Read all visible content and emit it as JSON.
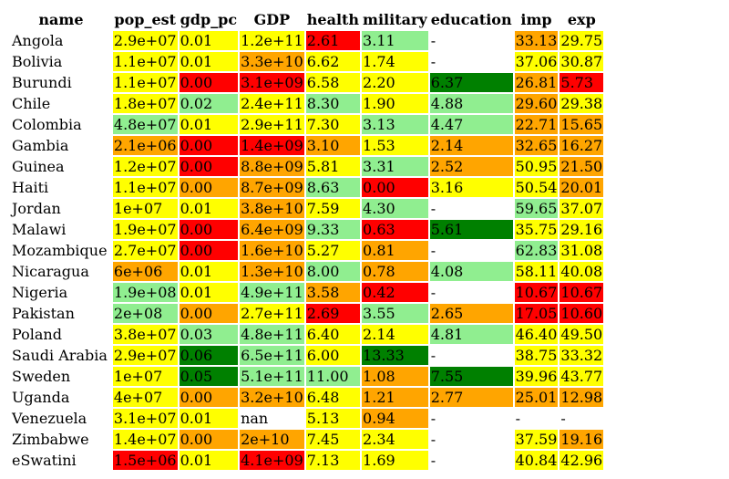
{
  "chart_data": {
    "type": "table",
    "columns": [
      "name",
      "pop_est",
      "gdp_pc",
      "GDP",
      "health",
      "military",
      "education",
      "imp",
      "exp"
    ],
    "colors": {
      "red": "#ff0000",
      "orange": "#ffa500",
      "yellow": "#ffff00",
      "lightgreen": "#90ee90",
      "green": "#008000"
    },
    "rows": [
      {
        "name": "Angola",
        "cells": [
          [
            "2.9e+07",
            "yellow"
          ],
          [
            "0.01",
            "yellow"
          ],
          [
            "1.2e+11",
            "yellow"
          ],
          [
            "2.61",
            "red"
          ],
          [
            "3.11",
            "lightgreen"
          ],
          [
            "-",
            "none"
          ],
          [
            "33.13",
            "orange"
          ],
          [
            "29.75",
            "yellow"
          ]
        ]
      },
      {
        "name": "Bolivia",
        "cells": [
          [
            "1.1e+07",
            "yellow"
          ],
          [
            "0.01",
            "yellow"
          ],
          [
            "3.3e+10",
            "orange"
          ],
          [
            "6.62",
            "yellow"
          ],
          [
            "1.74",
            "yellow"
          ],
          [
            "-",
            "none"
          ],
          [
            "37.06",
            "yellow"
          ],
          [
            "30.87",
            "yellow"
          ]
        ]
      },
      {
        "name": "Burundi",
        "cells": [
          [
            "1.1e+07",
            "yellow"
          ],
          [
            "0.00",
            "red"
          ],
          [
            "3.1e+09",
            "red"
          ],
          [
            "6.58",
            "yellow"
          ],
          [
            "2.20",
            "yellow"
          ],
          [
            "6.37",
            "green"
          ],
          [
            "26.81",
            "orange"
          ],
          [
            "5.73",
            "red"
          ]
        ]
      },
      {
        "name": "Chile",
        "cells": [
          [
            "1.8e+07",
            "yellow"
          ],
          [
            "0.02",
            "lightgreen"
          ],
          [
            "2.4e+11",
            "yellow"
          ],
          [
            "8.30",
            "lightgreen"
          ],
          [
            "1.90",
            "yellow"
          ],
          [
            "4.88",
            "lightgreen"
          ],
          [
            "29.60",
            "orange"
          ],
          [
            "29.38",
            "yellow"
          ]
        ]
      },
      {
        "name": "Colombia",
        "cells": [
          [
            "4.8e+07",
            "lightgreen"
          ],
          [
            "0.01",
            "yellow"
          ],
          [
            "2.9e+11",
            "yellow"
          ],
          [
            "7.30",
            "yellow"
          ],
          [
            "3.13",
            "lightgreen"
          ],
          [
            "4.47",
            "lightgreen"
          ],
          [
            "22.71",
            "orange"
          ],
          [
            "15.65",
            "orange"
          ]
        ]
      },
      {
        "name": "Gambia",
        "cells": [
          [
            "2.1e+06",
            "orange"
          ],
          [
            "0.00",
            "red"
          ],
          [
            "1.4e+09",
            "red"
          ],
          [
            "3.10",
            "orange"
          ],
          [
            "1.53",
            "yellow"
          ],
          [
            "2.14",
            "orange"
          ],
          [
            "32.65",
            "orange"
          ],
          [
            "16.27",
            "orange"
          ]
        ]
      },
      {
        "name": "Guinea",
        "cells": [
          [
            "1.2e+07",
            "yellow"
          ],
          [
            "0.00",
            "red"
          ],
          [
            "8.8e+09",
            "orange"
          ],
          [
            "5.81",
            "yellow"
          ],
          [
            "3.31",
            "lightgreen"
          ],
          [
            "2.52",
            "orange"
          ],
          [
            "50.95",
            "yellow"
          ],
          [
            "21.50",
            "orange"
          ]
        ]
      },
      {
        "name": "Haiti",
        "cells": [
          [
            "1.1e+07",
            "yellow"
          ],
          [
            "0.00",
            "orange"
          ],
          [
            "8.7e+09",
            "orange"
          ],
          [
            "8.63",
            "lightgreen"
          ],
          [
            "0.00",
            "red"
          ],
          [
            "3.16",
            "yellow"
          ],
          [
            "50.54",
            "yellow"
          ],
          [
            "20.01",
            "orange"
          ]
        ]
      },
      {
        "name": "Jordan",
        "cells": [
          [
            "1e+07",
            "yellow"
          ],
          [
            "0.01",
            "yellow"
          ],
          [
            "3.8e+10",
            "orange"
          ],
          [
            "7.59",
            "yellow"
          ],
          [
            "4.30",
            "lightgreen"
          ],
          [
            "-",
            "none"
          ],
          [
            "59.65",
            "lightgreen"
          ],
          [
            "37.07",
            "yellow"
          ]
        ]
      },
      {
        "name": "Malawi",
        "cells": [
          [
            "1.9e+07",
            "yellow"
          ],
          [
            "0.00",
            "red"
          ],
          [
            "6.4e+09",
            "orange"
          ],
          [
            "9.33",
            "lightgreen"
          ],
          [
            "0.63",
            "red"
          ],
          [
            "5.61",
            "green"
          ],
          [
            "35.75",
            "yellow"
          ],
          [
            "29.16",
            "yellow"
          ]
        ]
      },
      {
        "name": "Mozambique",
        "cells": [
          [
            "2.7e+07",
            "yellow"
          ],
          [
            "0.00",
            "red"
          ],
          [
            "1.6e+10",
            "orange"
          ],
          [
            "5.27",
            "yellow"
          ],
          [
            "0.81",
            "orange"
          ],
          [
            "-",
            "none"
          ],
          [
            "62.83",
            "lightgreen"
          ],
          [
            "31.08",
            "yellow"
          ]
        ]
      },
      {
        "name": "Nicaragua",
        "cells": [
          [
            "6e+06",
            "orange"
          ],
          [
            "0.01",
            "yellow"
          ],
          [
            "1.3e+10",
            "orange"
          ],
          [
            "8.00",
            "lightgreen"
          ],
          [
            "0.78",
            "orange"
          ],
          [
            "4.08",
            "lightgreen"
          ],
          [
            "58.11",
            "yellow"
          ],
          [
            "40.08",
            "yellow"
          ]
        ]
      },
      {
        "name": "Nigeria",
        "cells": [
          [
            "1.9e+08",
            "lightgreen"
          ],
          [
            "0.01",
            "yellow"
          ],
          [
            "4.9e+11",
            "lightgreen"
          ],
          [
            "3.58",
            "orange"
          ],
          [
            "0.42",
            "red"
          ],
          [
            "-",
            "none"
          ],
          [
            "10.67",
            "red"
          ],
          [
            "10.67",
            "red"
          ]
        ]
      },
      {
        "name": "Pakistan",
        "cells": [
          [
            "2e+08",
            "lightgreen"
          ],
          [
            "0.00",
            "orange"
          ],
          [
            "2.7e+11",
            "yellow"
          ],
          [
            "2.69",
            "red"
          ],
          [
            "3.55",
            "lightgreen"
          ],
          [
            "2.65",
            "orange"
          ],
          [
            "17.05",
            "red"
          ],
          [
            "10.60",
            "red"
          ]
        ]
      },
      {
        "name": "Poland",
        "cells": [
          [
            "3.8e+07",
            "yellow"
          ],
          [
            "0.03",
            "lightgreen"
          ],
          [
            "4.8e+11",
            "lightgreen"
          ],
          [
            "6.40",
            "yellow"
          ],
          [
            "2.14",
            "yellow"
          ],
          [
            "4.81",
            "lightgreen"
          ],
          [
            "46.40",
            "yellow"
          ],
          [
            "49.50",
            "yellow"
          ]
        ]
      },
      {
        "name": "Saudi Arabia",
        "cells": [
          [
            "2.9e+07",
            "yellow"
          ],
          [
            "0.06",
            "green"
          ],
          [
            "6.5e+11",
            "lightgreen"
          ],
          [
            "6.00",
            "yellow"
          ],
          [
            "13.33",
            "green"
          ],
          [
            "-",
            "none"
          ],
          [
            "38.75",
            "yellow"
          ],
          [
            "33.32",
            "yellow"
          ]
        ]
      },
      {
        "name": "Sweden",
        "cells": [
          [
            "1e+07",
            "yellow"
          ],
          [
            "0.05",
            "green"
          ],
          [
            "5.1e+11",
            "lightgreen"
          ],
          [
            "11.00",
            "lightgreen"
          ],
          [
            "1.08",
            "orange"
          ],
          [
            "7.55",
            "green"
          ],
          [
            "39.96",
            "yellow"
          ],
          [
            "43.77",
            "yellow"
          ]
        ]
      },
      {
        "name": "Uganda",
        "cells": [
          [
            "4e+07",
            "yellow"
          ],
          [
            "0.00",
            "orange"
          ],
          [
            "3.2e+10",
            "orange"
          ],
          [
            "6.48",
            "yellow"
          ],
          [
            "1.21",
            "orange"
          ],
          [
            "2.77",
            "orange"
          ],
          [
            "25.01",
            "orange"
          ],
          [
            "12.98",
            "orange"
          ]
        ]
      },
      {
        "name": "Venezuela",
        "cells": [
          [
            "3.1e+07",
            "yellow"
          ],
          [
            "0.01",
            "yellow"
          ],
          [
            "nan",
            "none"
          ],
          [
            "5.13",
            "yellow"
          ],
          [
            "0.94",
            "orange"
          ],
          [
            "-",
            "none"
          ],
          [
            "-",
            "none"
          ],
          [
            "-",
            "none"
          ]
        ]
      },
      {
        "name": "Zimbabwe",
        "cells": [
          [
            "1.4e+07",
            "yellow"
          ],
          [
            "0.00",
            "orange"
          ],
          [
            "2e+10",
            "orange"
          ],
          [
            "7.45",
            "yellow"
          ],
          [
            "2.34",
            "yellow"
          ],
          [
            "-",
            "none"
          ],
          [
            "37.59",
            "yellow"
          ],
          [
            "19.16",
            "orange"
          ]
        ]
      },
      {
        "name": "eSwatini",
        "cells": [
          [
            "1.5e+06",
            "red"
          ],
          [
            "0.01",
            "yellow"
          ],
          [
            "4.1e+09",
            "red"
          ],
          [
            "7.13",
            "yellow"
          ],
          [
            "1.69",
            "yellow"
          ],
          [
            "-",
            "none"
          ],
          [
            "40.84",
            "yellow"
          ],
          [
            "42.96",
            "yellow"
          ]
        ]
      }
    ]
  }
}
